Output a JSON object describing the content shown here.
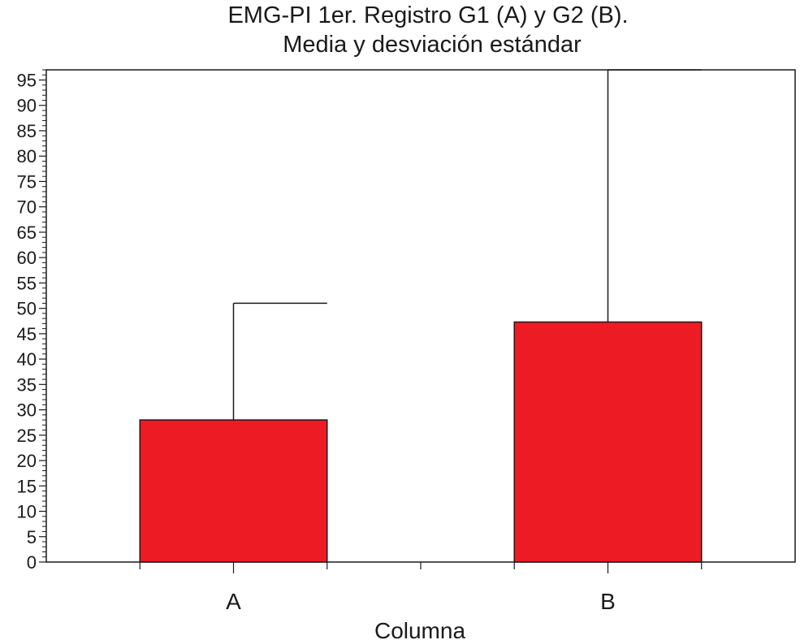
{
  "chart_data": {
    "type": "bar",
    "title_lines": [
      "EMG-PI 1er. Registro G1 (A) y G2 (B).",
      "Media y desviación estándar"
    ],
    "xlabel": "Columna",
    "ylabel": "",
    "categories": [
      "A",
      "B"
    ],
    "values": [
      28,
      47.3
    ],
    "error_upper": [
      51,
      97
    ],
    "ylim": [
      0,
      97
    ],
    "yticks": [
      0,
      5,
      10,
      15,
      20,
      25,
      30,
      35,
      40,
      45,
      50,
      55,
      60,
      65,
      70,
      75,
      80,
      85,
      90,
      95
    ],
    "minor_tick_step": 1,
    "grid": false,
    "legend": "none",
    "bar_color": "#ed1c24"
  }
}
